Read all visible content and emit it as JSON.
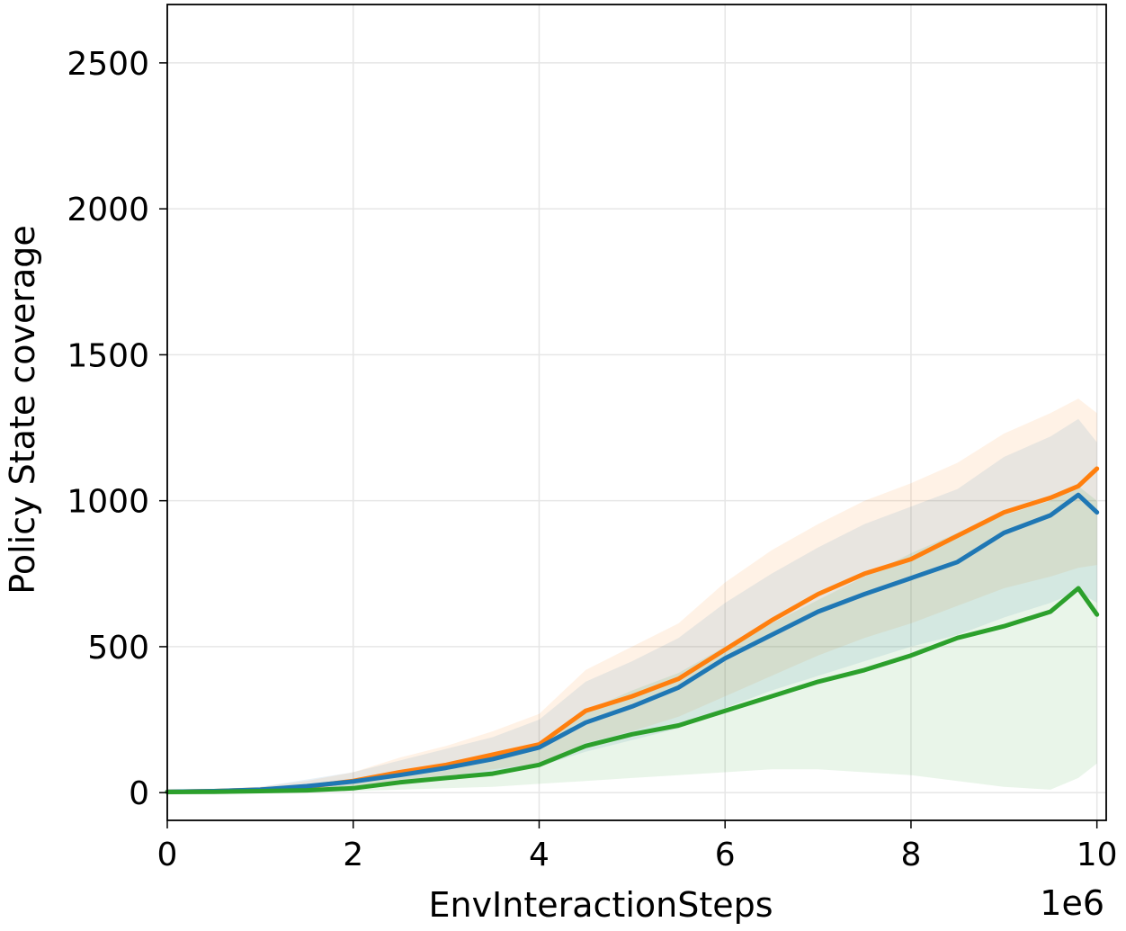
{
  "chart_data": {
    "type": "line",
    "xlabel": "EnvInteractionSteps",
    "ylabel": "Policy State coverage",
    "x_offset_label": "1e6",
    "xlim": [
      0,
      10.1
    ],
    "ylim": [
      -95,
      2700
    ],
    "xticks": [
      0,
      2,
      4,
      6,
      8,
      10
    ],
    "yticks": [
      0,
      500,
      1000,
      1500,
      2000,
      2500
    ],
    "grid": true,
    "legend": "none",
    "x": [
      0,
      0.5,
      1.0,
      1.5,
      2.0,
      2.5,
      3.0,
      3.5,
      4.0,
      4.5,
      5.0,
      5.5,
      6.0,
      6.5,
      7.0,
      7.5,
      8.0,
      8.5,
      9.0,
      9.5,
      9.8,
      10.0
    ],
    "series": [
      {
        "color": "#ff7f0e",
        "values": [
          3,
          5,
          10,
          20,
          40,
          70,
          95,
          130,
          165,
          280,
          330,
          390,
          490,
          590,
          680,
          750,
          800,
          880,
          960,
          1010,
          1050,
          1110
        ],
        "lower": [
          0,
          0,
          3,
          8,
          18,
          35,
          55,
          80,
          100,
          170,
          210,
          260,
          330,
          400,
          470,
          530,
          580,
          640,
          700,
          740,
          770,
          780
        ],
        "upper": [
          8,
          12,
          20,
          40,
          70,
          120,
          160,
          210,
          270,
          420,
          500,
          580,
          720,
          830,
          920,
          1000,
          1060,
          1130,
          1230,
          1300,
          1350,
          1300
        ]
      },
      {
        "color": "#1f77b4",
        "values": [
          3,
          5,
          10,
          22,
          38,
          60,
          85,
          115,
          155,
          240,
          295,
          360,
          460,
          540,
          620,
          680,
          735,
          790,
          890,
          950,
          1020,
          960
        ],
        "lower": [
          0,
          0,
          3,
          8,
          15,
          30,
          45,
          65,
          90,
          140,
          180,
          220,
          290,
          350,
          400,
          450,
          500,
          540,
          600,
          650,
          690,
          650
        ],
        "upper": [
          8,
          12,
          20,
          45,
          70,
          110,
          150,
          190,
          250,
          380,
          450,
          530,
          650,
          750,
          840,
          920,
          980,
          1040,
          1150,
          1220,
          1280,
          1200
        ]
      },
      {
        "color": "#2ca02c",
        "values": [
          2,
          3,
          5,
          8,
          15,
          35,
          50,
          65,
          95,
          160,
          200,
          230,
          280,
          330,
          380,
          420,
          470,
          530,
          570,
          620,
          700,
          610
        ],
        "lower": [
          0,
          0,
          0,
          2,
          5,
          10,
          15,
          20,
          30,
          40,
          50,
          60,
          70,
          80,
          80,
          70,
          60,
          40,
          20,
          10,
          50,
          100
        ],
        "upper": [
          5,
          8,
          12,
          18,
          30,
          60,
          90,
          120,
          170,
          280,
          350,
          410,
          500,
          580,
          660,
          740,
          820,
          890,
          950,
          1000,
          1050,
          1000
        ]
      }
    ]
  }
}
